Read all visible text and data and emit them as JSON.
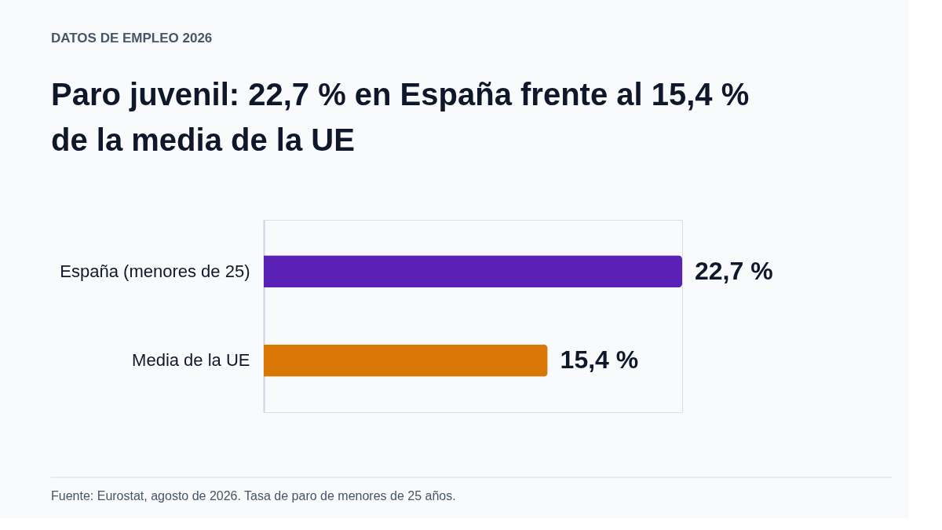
{
  "chart_data": {
    "type": "bar",
    "orientation": "horizontal",
    "subtitle": "DATOS DE EMPLEO 2026",
    "title": "Paro juvenil: 22,7 % en España frente al 15,4 % de la media de la UE",
    "categories": [
      "España (menores de 25)",
      "Media de la UE"
    ],
    "values": [
      22.7,
      15.4
    ],
    "colors": [
      "#5b21b6",
      "#d97706"
    ],
    "value_labels": [
      "22,7 %",
      "15,4 %"
    ],
    "annotations": [
      "Fuente: Eurostat, agosto de 2026. Tasa de paro de menores de 25 años."
    ]
  }
}
